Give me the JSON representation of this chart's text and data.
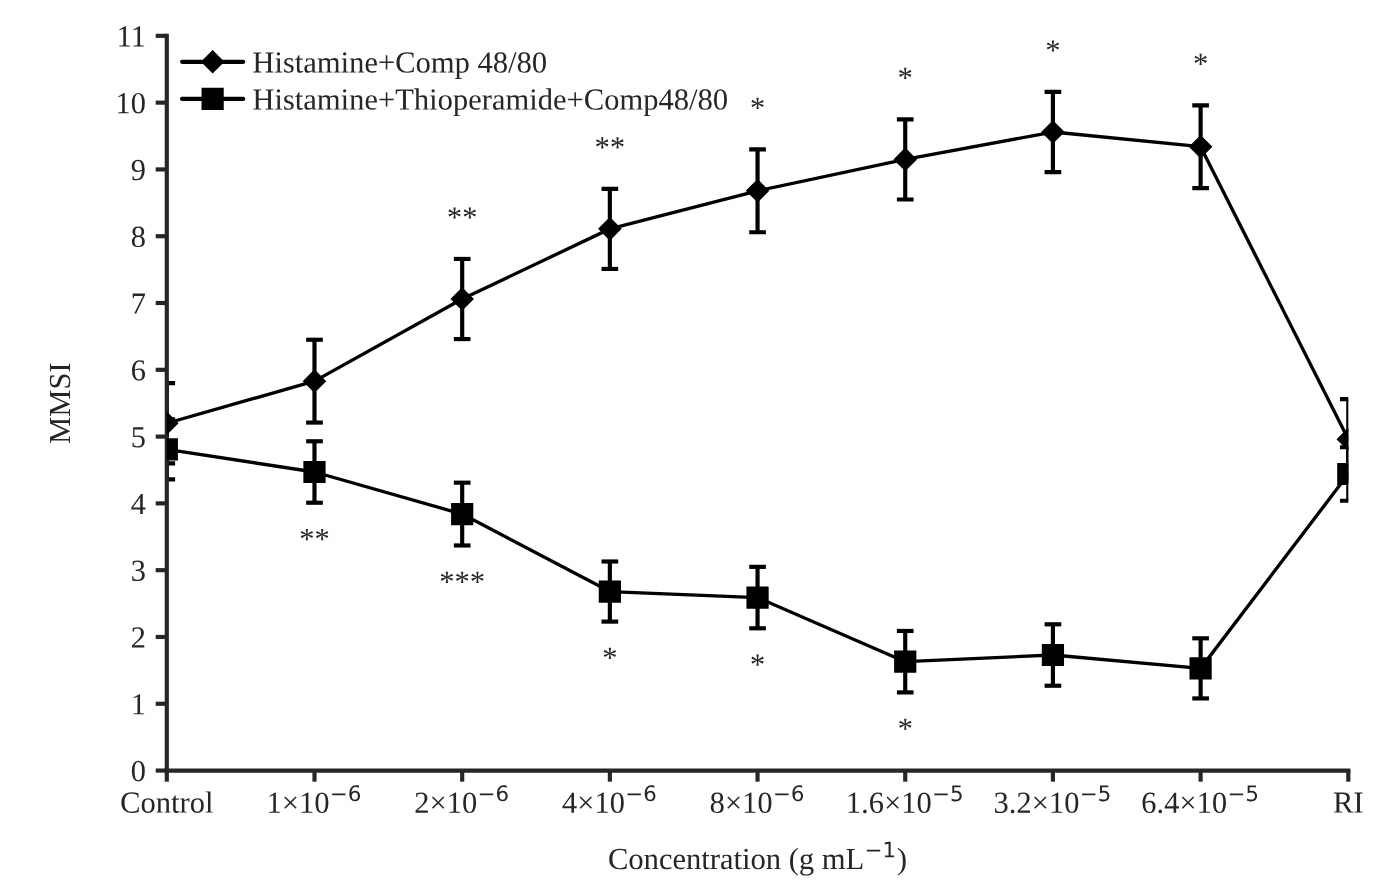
{
  "chart_data": {
    "type": "line",
    "xlabel": "Concentration (g mL$^{−1}$)",
    "ylabel": "MMSI",
    "categories": [
      "Control",
      "1×10$^{−6}$",
      "2×10$^{−6}$",
      "4×10$^{−6}$",
      "8×10$^{−6}$",
      "1.6×10$^{−5}$",
      "3.2×10$^{−5}$",
      "6.4×10$^{−5}$",
      "RI"
    ],
    "ylim": [
      0,
      11
    ],
    "yticks": [
      0,
      1,
      2,
      3,
      4,
      5,
      6,
      7,
      8,
      9,
      10,
      11
    ],
    "grid": false,
    "legend": "top left",
    "line_style": "solid",
    "series": [
      {
        "name": "Histamine+Comp 48/80",
        "color": "#000000",
        "marker": "diamond",
        "values": [
          5.2,
          5.83,
          7.06,
          8.11,
          8.68,
          9.15,
          9.56,
          9.34,
          4.96
        ],
        "errors": [
          0.6,
          0.62,
          0.6,
          0.6,
          0.62,
          0.6,
          0.6,
          0.62,
          0.6
        ]
      },
      {
        "name": "Histamine+Thioperamide+Comp48/80",
        "color": "#000000",
        "marker": "square",
        "values": [
          4.81,
          4.47,
          3.84,
          2.68,
          2.59,
          1.63,
          1.73,
          1.53,
          4.44
        ],
        "errors": [
          0.45,
          0.46,
          0.47,
          0.45,
          0.46,
          0.46,
          0.46,
          0.45,
          0.4
        ]
      }
    ],
    "annotations": [
      {
        "text": "**",
        "x": "2×10$^{−6}$",
        "y": 7.06
      },
      {
        "text": "**",
        "x": "4×10$^{−6}$",
        "y": 8.11
      },
      {
        "text": "*",
        "x": "8×10$^{−6}$",
        "y": 8.68
      },
      {
        "text": "*",
        "x": "1.6×10$^{−5}$",
        "y": 9.15
      },
      {
        "text": "*",
        "x": "3.2×10$^{−5}$",
        "y": 9.56
      },
      {
        "text": "*",
        "x": "6.4×10$^{−5}$",
        "y": 9.34
      },
      {
        "text": "**",
        "x": "1×10$^{−6}$",
        "y": 4.47
      },
      {
        "text": "***",
        "x": "2×10$^{−6}$",
        "y": 3.84
      },
      {
        "text": "*",
        "x": "4×10$^{−6}$",
        "y": 2.68
      },
      {
        "text": "*",
        "x": "8×10$^{−6}$",
        "y": 2.59
      },
      {
        "text": "*",
        "x": "1.6×10$^{−5}$",
        "y": 1.63
      }
    ]
  }
}
